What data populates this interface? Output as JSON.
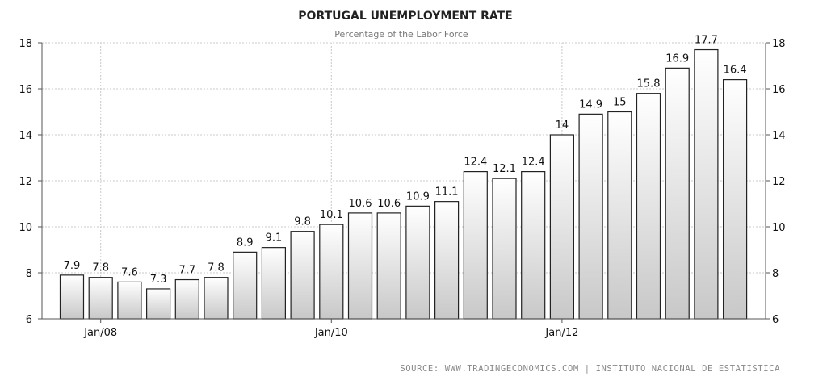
{
  "chart_data": {
    "type": "bar",
    "title": "PORTUGAL UNEMPLOYMENT RATE",
    "subtitle": "Percentage of the Labor Force",
    "source": "SOURCE: WWW.TRADINGECONOMICS.COM | INSTITUTO NACIONAL DE ESTATISTICA",
    "xlabel": "",
    "ylabel": "",
    "ylim": [
      6,
      18
    ],
    "yticks": [
      6,
      8,
      10,
      12,
      14,
      16,
      18
    ],
    "grid": true,
    "x_tick_labels": [
      {
        "label": "Jan/08",
        "index": 1
      },
      {
        "label": "Jan/10",
        "index": 9
      },
      {
        "label": "Jan/12",
        "index": 17
      }
    ],
    "values": [
      7.9,
      7.8,
      7.6,
      7.3,
      7.7,
      7.8,
      8.9,
      9.1,
      9.8,
      10.1,
      10.6,
      10.6,
      10.9,
      11.1,
      12.4,
      12.1,
      12.4,
      14,
      14.9,
      15,
      15.8,
      16.9,
      17.7,
      16.4
    ],
    "colors": {
      "bar_top": "#ffffff",
      "bar_bottom": "#c8c8c8",
      "bar_stroke": "#222222",
      "grid": "#c8c8c8",
      "axis": "#555555"
    }
  }
}
